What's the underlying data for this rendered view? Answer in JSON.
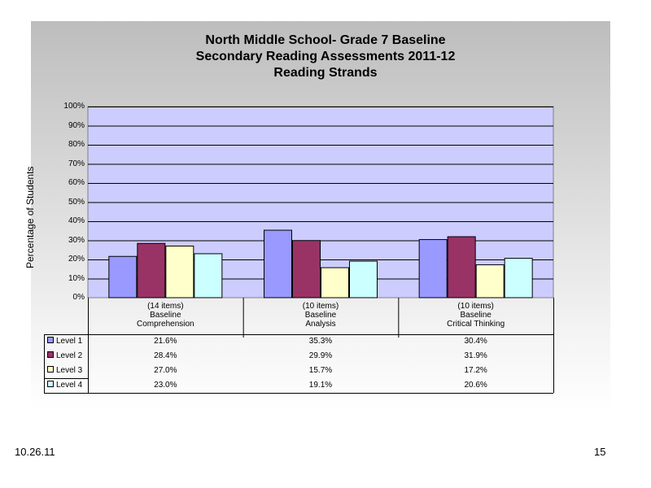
{
  "footer": {
    "date": "10.26.11",
    "page": "15"
  },
  "chart_data": {
    "type": "bar",
    "title": "North Middle School- Grade 7 Baseline",
    "subtitle_lines": [
      "Secondary Reading Assessments 2011-12",
      "Reading Strands"
    ],
    "ylabel": "Percentage of Students",
    "ylim": [
      0,
      100
    ],
    "yticks": [
      "0%",
      "10%",
      "20%",
      "30%",
      "40%",
      "50%",
      "60%",
      "70%",
      "80%",
      "90%",
      "100%"
    ],
    "categories": [
      [
        "(14 items)",
        "Baseline",
        "Comprehension"
      ],
      [
        "(10 items)",
        "Baseline",
        "Analysis"
      ],
      [
        "(10 items)",
        "Baseline",
        "Critical Thinking"
      ]
    ],
    "series": [
      {
        "name": "Level 1",
        "color": "#9999ff",
        "values": [
          21.6,
          35.3,
          30.4
        ],
        "labels": [
          "21.6%",
          "35.3%",
          "30.4%"
        ]
      },
      {
        "name": "Level 2",
        "color": "#993366",
        "values": [
          28.4,
          29.9,
          31.9
        ],
        "labels": [
          "28.4%",
          "29.9%",
          "31.9%"
        ]
      },
      {
        "name": "Level 3",
        "color": "#ffffcc",
        "values": [
          27.0,
          15.7,
          17.2
        ],
        "labels": [
          "27.0%",
          "15.7%",
          "17.2%"
        ]
      },
      {
        "name": "Level 4",
        "color": "#ccffff",
        "values": [
          23.0,
          19.1,
          20.6
        ],
        "labels": [
          "23.0%",
          "19.1%",
          "20.6%"
        ]
      }
    ],
    "plot_background": "#ccccff",
    "grid": true,
    "legend": "data-table"
  }
}
